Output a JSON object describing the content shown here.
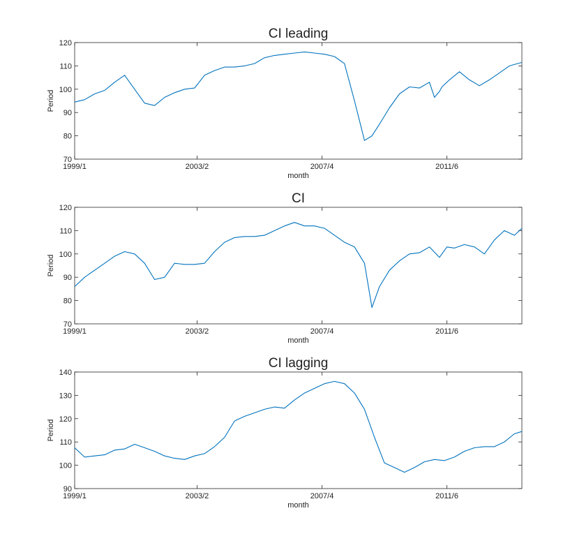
{
  "chart_data": [
    {
      "type": "line",
      "title": "CI leading",
      "xlabel": "month",
      "ylabel": "Period",
      "xlim": [
        "1999/1",
        "2013/12"
      ],
      "ylim": [
        70,
        120
      ],
      "yticks": [
        70,
        80,
        90,
        100,
        110,
        120
      ],
      "xticks": [
        "1999/1",
        "2003/2",
        "2007/4",
        "2011/6"
      ],
      "grid": false,
      "color": "#0072BD",
      "series": [
        {
          "x": [
            "1999/1",
            "1999/5",
            "1999/9",
            "2000/1",
            "2000/5",
            "2000/9",
            "2001/1",
            "2001/5",
            "2001/9",
            "2002/1",
            "2002/5",
            "2002/9",
            "2003/1",
            "2003/5",
            "2003/9",
            "2004/1",
            "2004/5",
            "2004/9",
            "2005/1",
            "2005/5",
            "2005/9",
            "2006/1",
            "2006/5",
            "2006/9",
            "2007/1",
            "2007/5",
            "2007/9",
            "2008/1",
            "2008/5",
            "2008/9",
            "2008/12",
            "2009/3",
            "2009/7",
            "2009/11",
            "2010/3",
            "2010/7",
            "2010/11",
            "2011/1",
            "2011/3",
            "2011/4",
            "2011/7",
            "2011/11",
            "2012/3",
            "2012/7",
            "2012/11",
            "2013/3",
            "2013/7",
            "2013/12"
          ],
          "values": [
            94.5,
            95.5,
            98,
            99.5,
            103,
            106,
            100,
            94,
            93,
            96.5,
            98.5,
            100,
            100.5,
            106,
            108,
            109.5,
            109.5,
            110,
            111,
            113.5,
            114.5,
            115,
            115.5,
            116,
            115.5,
            115,
            114,
            111,
            95,
            78,
            80,
            85,
            92,
            98,
            101,
            100.5,
            103,
            96.5,
            99,
            101,
            104,
            107.5,
            104,
            101.5,
            104,
            107,
            110,
            111.5
          ]
        }
      ]
    },
    {
      "type": "line",
      "title": "CI",
      "xlabel": "month",
      "ylabel": "Period",
      "xlim": [
        "1999/1",
        "2013/12"
      ],
      "ylim": [
        70,
        120
      ],
      "yticks": [
        70,
        80,
        90,
        100,
        110,
        120
      ],
      "xticks": [
        "1999/1",
        "2003/2",
        "2007/4",
        "2011/6"
      ],
      "grid": false,
      "color": "#0072BD",
      "series": [
        {
          "x": [
            "1999/1",
            "1999/5",
            "1999/9",
            "2000/1",
            "2000/5",
            "2000/9",
            "2001/1",
            "2001/5",
            "2001/9",
            "2002/1",
            "2002/5",
            "2002/9",
            "2003/1",
            "2003/5",
            "2003/9",
            "2004/1",
            "2004/5",
            "2004/9",
            "2005/1",
            "2005/5",
            "2005/9",
            "2006/1",
            "2006/5",
            "2006/9",
            "2007/1",
            "2007/5",
            "2007/9",
            "2008/1",
            "2008/5",
            "2008/9",
            "2008/12",
            "2009/3",
            "2009/7",
            "2009/11",
            "2010/3",
            "2010/7",
            "2010/11",
            "2011/3",
            "2011/6",
            "2011/9",
            "2012/1",
            "2012/5",
            "2012/9",
            "2013/1",
            "2013/5",
            "2013/9",
            "2013/12"
          ],
          "values": [
            86,
            90,
            93,
            96,
            99,
            101,
            100,
            96,
            89,
            90,
            96,
            95.5,
            95.5,
            96,
            101,
            105,
            107,
            107.5,
            107.5,
            108,
            110,
            112,
            113.5,
            112,
            112,
            111,
            108,
            105,
            103,
            96,
            77,
            86,
            93,
            97,
            100,
            100.5,
            103,
            98.5,
            103,
            102.5,
            104,
            103,
            100,
            106,
            110,
            108,
            111
          ]
        }
      ]
    },
    {
      "type": "line",
      "title": "CI lagging",
      "xlabel": "month",
      "ylabel": "Period",
      "xlim": [
        "1999/1",
        "2013/12"
      ],
      "ylim": [
        90,
        140
      ],
      "yticks": [
        90,
        100,
        110,
        120,
        130,
        140
      ],
      "xticks": [
        "1999/1",
        "2003/2",
        "2007/4",
        "2011/6"
      ],
      "grid": false,
      "color": "#0072BD",
      "series": [
        {
          "x": [
            "1999/1",
            "1999/5",
            "1999/9",
            "2000/1",
            "2000/5",
            "2000/9",
            "2001/1",
            "2001/5",
            "2001/9",
            "2002/1",
            "2002/5",
            "2002/9",
            "2003/1",
            "2003/5",
            "2003/9",
            "2004/1",
            "2004/5",
            "2004/9",
            "2005/1",
            "2005/5",
            "2005/9",
            "2006/1",
            "2006/5",
            "2006/9",
            "2007/1",
            "2007/5",
            "2007/9",
            "2008/1",
            "2008/5",
            "2008/9",
            "2009/1",
            "2009/5",
            "2009/9",
            "2010/1",
            "2010/5",
            "2010/9",
            "2011/1",
            "2011/5",
            "2011/9",
            "2012/1",
            "2012/5",
            "2012/9",
            "2013/1",
            "2013/5",
            "2013/9",
            "2013/12"
          ],
          "values": [
            107.5,
            103.5,
            104,
            104.5,
            106.5,
            107,
            109,
            107.5,
            106,
            104,
            103,
            102.5,
            104,
            105,
            108,
            112,
            119,
            121,
            122.5,
            124,
            125,
            124.5,
            128,
            131,
            133,
            135,
            136,
            135,
            131,
            124,
            112,
            101,
            99,
            97,
            99,
            101.5,
            102.5,
            102,
            103.5,
            106,
            107.5,
            108,
            108,
            110,
            113.5,
            114.5
          ]
        }
      ]
    }
  ]
}
